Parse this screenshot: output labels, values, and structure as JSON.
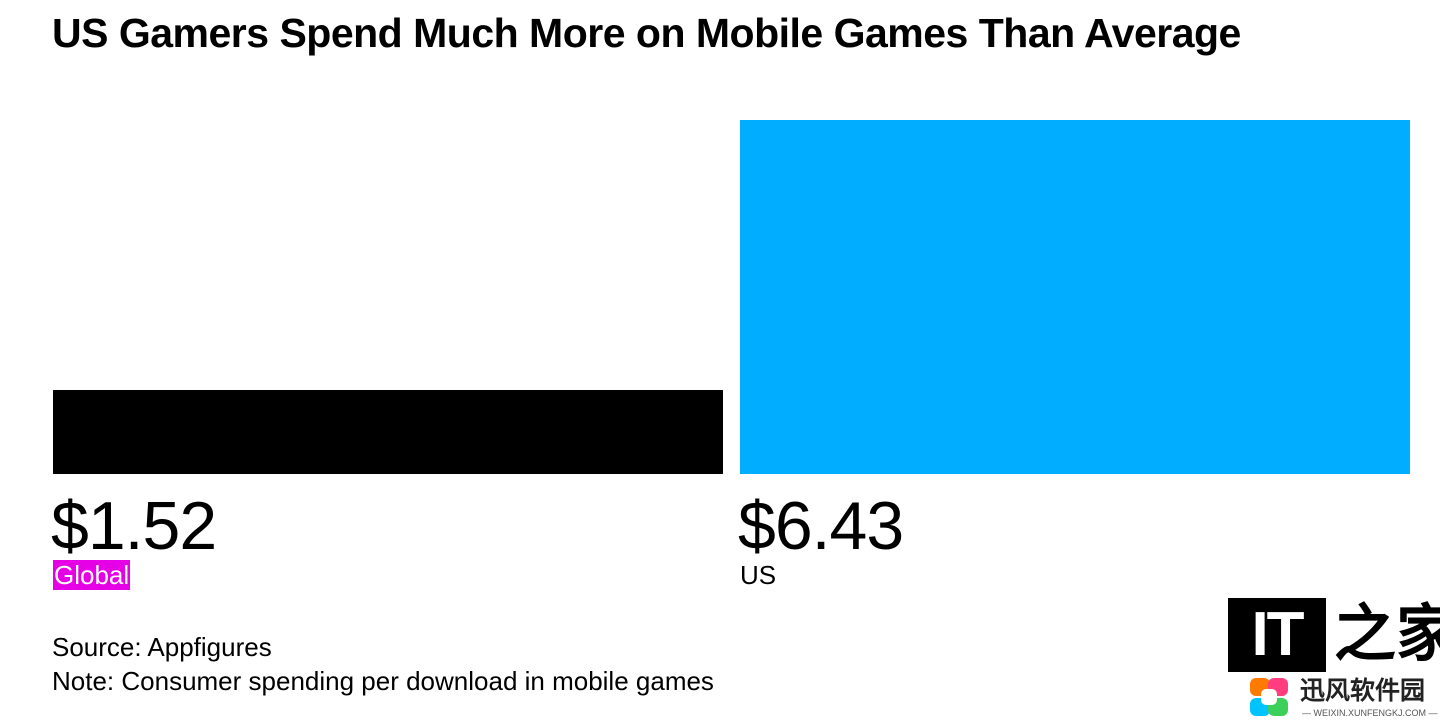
{
  "chart_data": {
    "type": "bar",
    "title": "US Gamers Spend Much More on Mobile Games Than Average",
    "categories": [
      "Global",
      "US"
    ],
    "values": [
      1.52,
      6.43
    ],
    "value_labels": [
      "$1.52",
      "$6.43"
    ],
    "bar_colors": [
      "#000000",
      "#00adff"
    ],
    "highlighted_label_color": "#e600e6",
    "ylim": [
      0,
      6.43
    ],
    "grid": false,
    "legend": "none",
    "source": "Source: Appfigures",
    "note": "Note: Consumer spending per download in mobile games"
  },
  "watermark": {
    "it_text": "IT",
    "zhi_text": "之家",
    "site_name": "迅风软件园",
    "site_url": "— WEIXIN.XUNFENGKJ.COM —"
  }
}
